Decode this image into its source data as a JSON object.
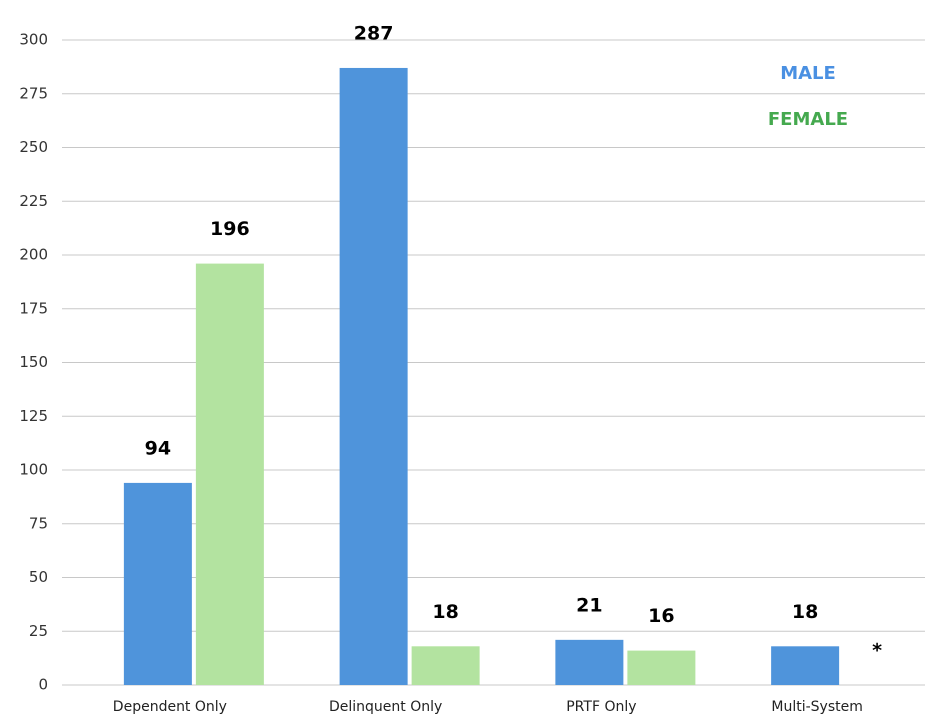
{
  "chart_data": {
    "type": "bar",
    "categories": [
      "Dependent Only",
      "Delinquent Only",
      "PRTF Only",
      "Multi-System"
    ],
    "series": [
      {
        "name": "MALE",
        "color": "#4f94db",
        "legend_color": "#4a90e2",
        "values": [
          94,
          287,
          21,
          18
        ]
      },
      {
        "name": "FEMALE",
        "color": "#b3e3a0",
        "legend_color": "#45a94f",
        "values": [
          196,
          18,
          16,
          null
        ],
        "value_labels": [
          "196",
          "18",
          "16",
          "*"
        ]
      }
    ],
    "ylim": [
      0,
      300
    ],
    "yticks": [
      0,
      25,
      50,
      75,
      100,
      125,
      150,
      175,
      200,
      225,
      250,
      275,
      300
    ],
    "grid": true,
    "legend": "upper right"
  }
}
